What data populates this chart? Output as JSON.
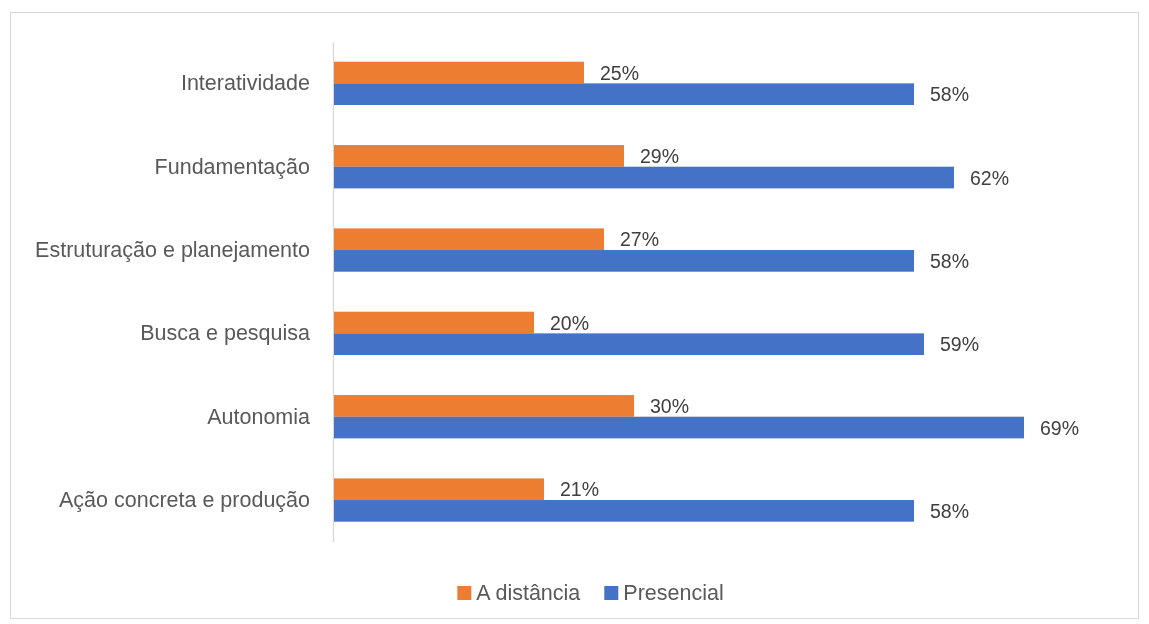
{
  "chart_data": {
    "type": "bar",
    "orientation": "horizontal",
    "categories": [
      "Interatividade",
      "Fundamentação",
      "Estruturação e planejamento",
      "Busca e pesquisa",
      "Autonomia",
      "Ação concreta e produção"
    ],
    "series": [
      {
        "name": "A distância",
        "color": "#ed7d31",
        "values": [
          25,
          29,
          27,
          20,
          30,
          21
        ],
        "value_labels": [
          "25%",
          "29%",
          "27%",
          "20%",
          "30%",
          "21%"
        ]
      },
      {
        "name": "Presencial",
        "color": "#4472c4",
        "values": [
          58,
          62,
          58,
          59,
          69,
          58
        ],
        "value_labels": [
          "58%",
          "62%",
          "58%",
          "59%",
          "69%",
          "58%"
        ]
      }
    ],
    "xlim": [
      0,
      80
    ],
    "tick_labels": "y",
    "legend": "bottom"
  }
}
